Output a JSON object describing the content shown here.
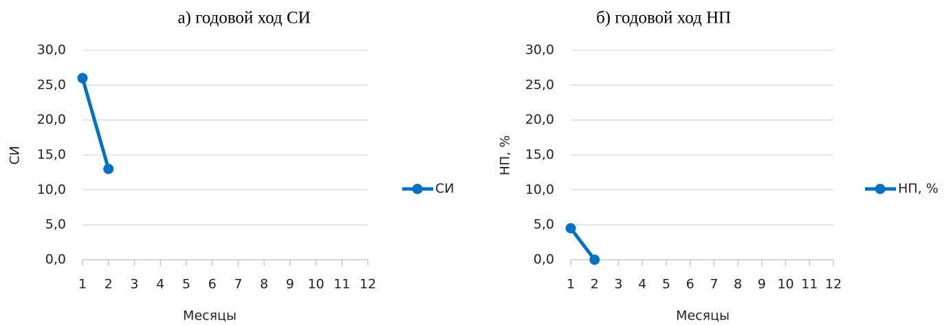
{
  "chart_data": [
    {
      "type": "line",
      "title": "а) годовой ход СИ",
      "x_label": "Месяцы",
      "y_label": "СИ",
      "x": [
        1,
        2,
        3,
        4,
        5,
        6,
        7,
        8,
        9,
        10,
        11,
        12
      ],
      "series": [
        {
          "name": "СИ",
          "color": "#0070c0",
          "values": [
            26,
            13,
            null,
            null,
            null,
            null,
            null,
            null,
            null,
            null,
            null,
            null
          ]
        }
      ],
      "xlim": [
        1,
        12
      ],
      "xticks": [
        1,
        2,
        3,
        4,
        5,
        6,
        7,
        8,
        9,
        10,
        11,
        12
      ],
      "ylim": [
        0,
        30
      ],
      "yticks": [
        {
          "value": 0,
          "label": "0,0"
        },
        {
          "value": 5,
          "label": "5,0"
        },
        {
          "value": 10,
          "label": "10,0"
        },
        {
          "value": 15,
          "label": "15,0"
        },
        {
          "value": 20,
          "label": "20,0"
        },
        {
          "value": 25,
          "label": "25,0"
        },
        {
          "value": 30,
          "label": "30,0"
        }
      ],
      "grid": true,
      "legend": "right"
    },
    {
      "type": "line",
      "title": "б) годовой ход НП",
      "x_label": "Месяцы",
      "y_label": "НП, %",
      "x": [
        1,
        2,
        3,
        4,
        5,
        6,
        7,
        8,
        9,
        10,
        11,
        12
      ],
      "series": [
        {
          "name": "НП, %",
          "color": "#0070c0",
          "values": [
            4.5,
            0,
            null,
            null,
            null,
            null,
            null,
            null,
            null,
            null,
            null,
            null
          ]
        }
      ],
      "xlim": [
        1,
        12
      ],
      "xticks": [
        1,
        2,
        3,
        4,
        5,
        6,
        7,
        8,
        9,
        10,
        11,
        12
      ],
      "ylim": [
        0,
        30
      ],
      "yticks": [
        {
          "value": 0,
          "label": "0,0"
        },
        {
          "value": 5,
          "label": "5,0"
        },
        {
          "value": 10,
          "label": "10,0"
        },
        {
          "value": 15,
          "label": "15,0"
        },
        {
          "value": 20,
          "label": "20,0"
        },
        {
          "value": 25,
          "label": "25,0"
        },
        {
          "value": 30,
          "label": "30,0"
        }
      ],
      "grid": true,
      "legend": "right"
    }
  ]
}
